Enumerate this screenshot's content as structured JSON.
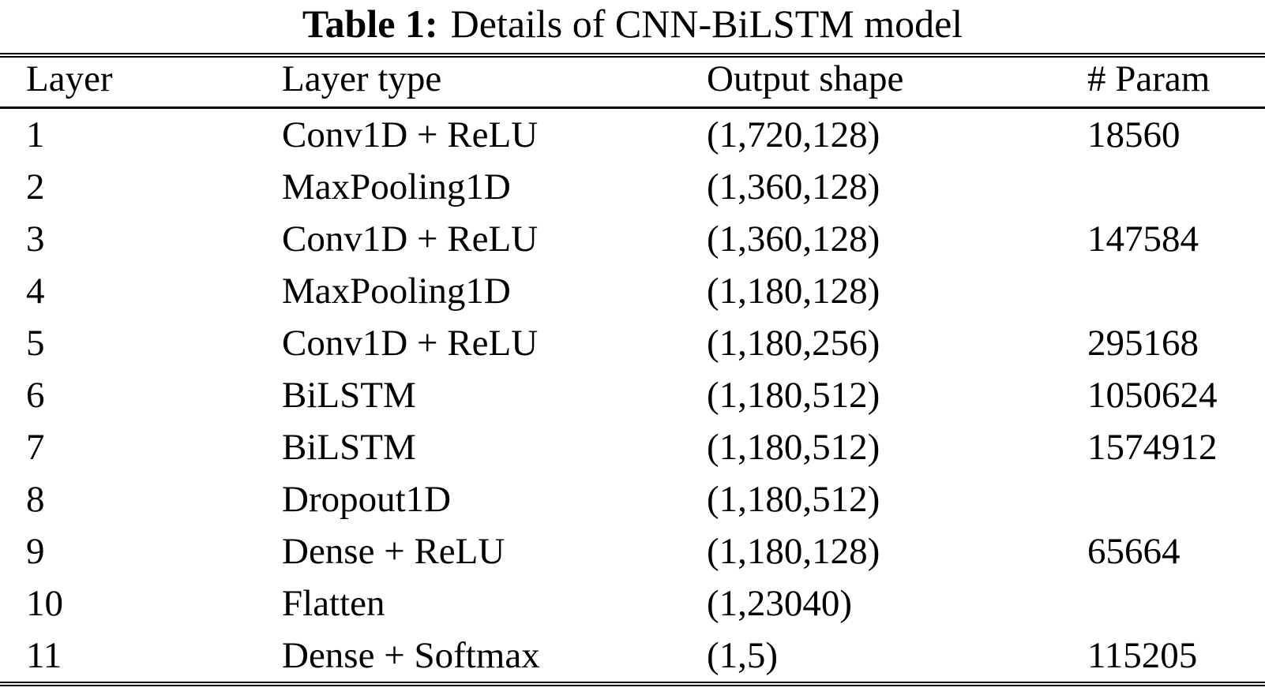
{
  "title": {
    "label": "Table 1:",
    "text": "Details of CNN-BiLSTM model"
  },
  "table": {
    "columns": [
      "Layer",
      "Layer type",
      "Output shape",
      "# Param"
    ],
    "rows": [
      [
        "1",
        "Conv1D + ReLU",
        "(1,720,128)",
        "18560"
      ],
      [
        "2",
        "MaxPooling1D",
        "(1,360,128)",
        ""
      ],
      [
        "3",
        "Conv1D + ReLU",
        "(1,360,128)",
        "147584"
      ],
      [
        "4",
        "MaxPooling1D",
        "(1,180,128)",
        ""
      ],
      [
        "5",
        "Conv1D + ReLU",
        "(1,180,256)",
        "295168"
      ],
      [
        "6",
        "BiLSTM",
        "(1,180,512)",
        "1050624"
      ],
      [
        "7",
        "BiLSTM",
        "(1,180,512)",
        "1574912"
      ],
      [
        "8",
        "Dropout1D",
        "(1,180,512)",
        ""
      ],
      [
        "9",
        "Dense + ReLU",
        "(1,180,128)",
        "65664"
      ],
      [
        "10",
        "Flatten",
        "(1,23040)",
        ""
      ],
      [
        "11",
        "Dense + Softmax",
        "(1,5)",
        "115205"
      ]
    ]
  },
  "colors": {
    "background": "#ffffff",
    "text": "#000000",
    "rule": "#000000"
  }
}
